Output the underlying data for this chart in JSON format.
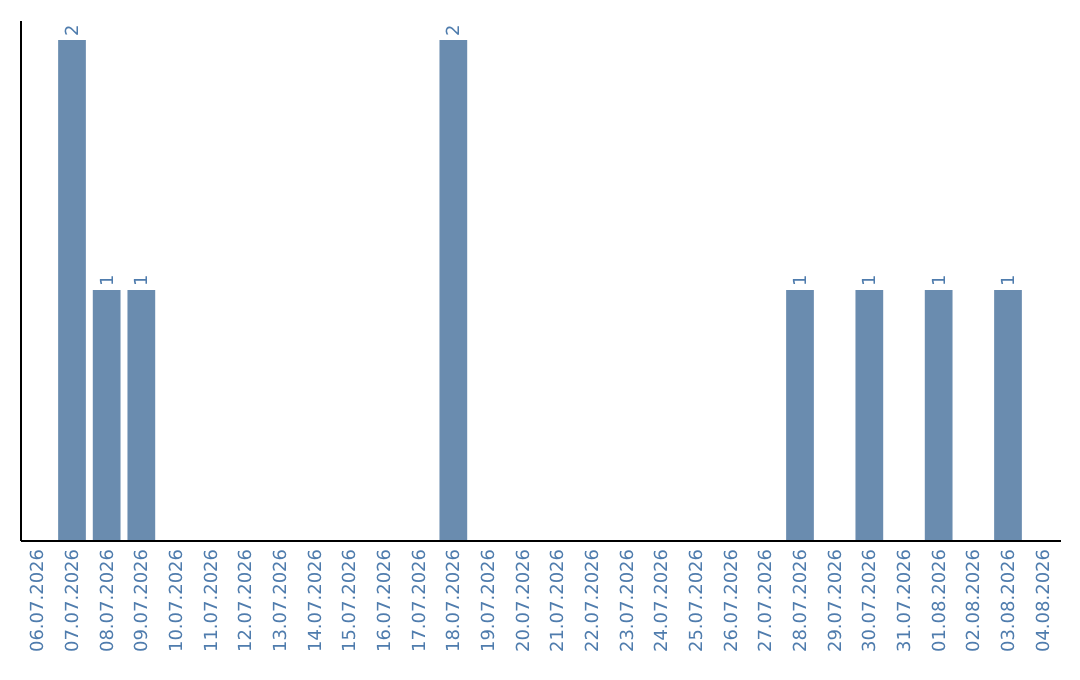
{
  "chart_data": {
    "type": "bar",
    "categories": [
      "06.07.2026",
      "07.07.2026",
      "08.07.2026",
      "09.07.2026",
      "10.07.2026",
      "11.07.2026",
      "12.07.2026",
      "13.07.2026",
      "14.07.2026",
      "15.07.2026",
      "16.07.2026",
      "17.07.2026",
      "18.07.2026",
      "19.07.2026",
      "20.07.2026",
      "21.07.2026",
      "22.07.2026",
      "23.07.2026",
      "24.07.2026",
      "25.07.2026",
      "26.07.2026",
      "27.07.2026",
      "28.07.2026",
      "29.07.2026",
      "30.07.2026",
      "31.07.2026",
      "01.08.2026",
      "02.08.2026",
      "03.08.2026",
      "04.08.2026"
    ],
    "values": [
      0,
      2,
      1,
      1,
      0,
      0,
      0,
      0,
      0,
      0,
      0,
      0,
      2,
      0,
      0,
      0,
      0,
      0,
      0,
      0,
      0,
      0,
      1,
      0,
      1,
      0,
      1,
      0,
      1,
      0
    ],
    "value_labels": [
      null,
      "2",
      "1",
      "1",
      null,
      null,
      null,
      null,
      null,
      null,
      null,
      null,
      "2",
      null,
      null,
      null,
      null,
      null,
      null,
      null,
      null,
      null,
      "1",
      null,
      "1",
      null,
      "1",
      null,
      "1",
      null
    ],
    "color": "#6a8caf",
    "grid": false,
    "tick_labels": "x"
  }
}
